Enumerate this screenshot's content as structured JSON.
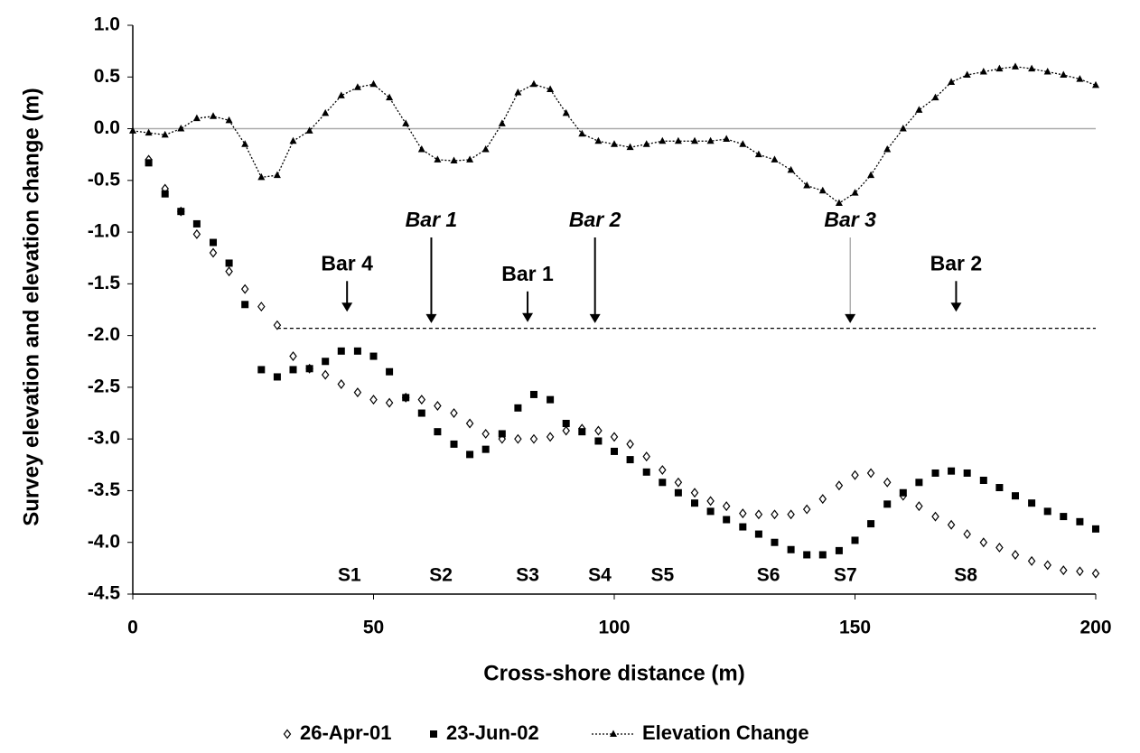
{
  "chart_data": {
    "type": "scatter",
    "x_label": "Cross-shore distance (m)",
    "y_label": "Survey elevation and elevation change (m)",
    "xlim": [
      0,
      200
    ],
    "xticks": [
      0,
      50,
      100,
      150,
      200
    ],
    "ylim": [
      -4.5,
      1
    ],
    "yticks": [
      {
        "value": 1,
        "label": "1.0"
      },
      0.5,
      {
        "value": 0,
        "label": "0.0"
      },
      -0.5,
      {
        "value": -1,
        "label": "-1.0"
      },
      -1.5,
      {
        "value": -2,
        "label": "-2.0"
      },
      -2.5,
      {
        "value": -3,
        "label": "-3.0"
      },
      -3.5,
      {
        "value": -4,
        "label": "-4.0"
      },
      -4.5
    ],
    "zero_line": true,
    "x": [
      0,
      3.3,
      6.7,
      10,
      13.3,
      16.7,
      20,
      23.3,
      26.7,
      30,
      33.3,
      36.7,
      40,
      43.3,
      46.7,
      50,
      53.3,
      56.7,
      60,
      63.3,
      66.7,
      70,
      73.3,
      76.7,
      80,
      83.3,
      86.7,
      90,
      93.3,
      96.7,
      100,
      103.3,
      106.7,
      110,
      113.3,
      116.7,
      120,
      123.3,
      126.7,
      130,
      133.3,
      136.7,
      140,
      143.3,
      146.7,
      150,
      153.3,
      156.7,
      160,
      163.3,
      166.7,
      170,
      173.3,
      176.7,
      180,
      183.3,
      186.7,
      190,
      193.3,
      196.7,
      200
    ],
    "series": [
      {
        "name": "26-Apr-01",
        "marker": "diamond",
        "color": "#000000",
        "values": [
          null,
          -0.3,
          -0.58,
          -0.8,
          -1.02,
          -1.2,
          -1.38,
          -1.55,
          -1.72,
          -1.9,
          -2.2,
          -2.32,
          -2.38,
          -2.47,
          -2.55,
          -2.62,
          -2.65,
          -2.6,
          -2.62,
          -2.68,
          -2.75,
          -2.85,
          -2.95,
          -3.0,
          -3.0,
          -3.0,
          -2.98,
          -2.92,
          -2.9,
          -2.92,
          -2.98,
          -3.05,
          -3.17,
          -3.3,
          -3.42,
          -3.52,
          -3.6,
          -3.65,
          -3.72,
          -3.73,
          -3.73,
          -3.73,
          -3.68,
          -3.58,
          -3.45,
          -3.35,
          -3.33,
          -3.42,
          -3.55,
          -3.65,
          -3.75,
          -3.83,
          -3.92,
          -4.0,
          -4.05,
          -4.12,
          -4.18,
          -4.22,
          -4.27,
          -4.28,
          -4.3
        ]
      },
      {
        "name": "23-Jun-02",
        "marker": "square",
        "color": "#000000",
        "values": [
          null,
          -0.33,
          -0.63,
          -0.8,
          -0.92,
          -1.1,
          -1.3,
          -1.7,
          -2.33,
          -2.4,
          -2.33,
          -2.32,
          -2.25,
          -2.15,
          -2.15,
          -2.2,
          -2.35,
          -2.6,
          -2.75,
          -2.93,
          -3.05,
          -3.15,
          -3.1,
          -2.95,
          -2.7,
          -2.57,
          -2.62,
          -2.85,
          -2.93,
          -3.02,
          -3.12,
          -3.2,
          -3.32,
          -3.42,
          -3.52,
          -3.62,
          -3.7,
          -3.78,
          -3.85,
          -3.92,
          -4.0,
          -4.07,
          -4.12,
          -4.12,
          -4.08,
          -3.98,
          -3.82,
          -3.63,
          -3.52,
          -3.42,
          -3.33,
          -3.31,
          -3.33,
          -3.4,
          -3.47,
          -3.55,
          -3.62,
          -3.7,
          -3.75,
          -3.8,
          -3.87
        ]
      },
      {
        "name": "Elevation Change",
        "marker": "triangle",
        "line": "dotted",
        "color": "#000000",
        "values": [
          -0.02,
          -0.04,
          -0.06,
          0.0,
          0.1,
          0.12,
          0.08,
          -0.15,
          -0.47,
          -0.45,
          -0.12,
          -0.02,
          0.15,
          0.32,
          0.4,
          0.43,
          0.3,
          0.05,
          -0.2,
          -0.3,
          -0.31,
          -0.3,
          -0.2,
          0.05,
          0.35,
          0.43,
          0.38,
          0.15,
          -0.05,
          -0.12,
          -0.15,
          -0.18,
          -0.15,
          -0.12,
          -0.12,
          -0.12,
          -0.12,
          -0.1,
          -0.15,
          -0.25,
          -0.3,
          -0.4,
          -0.55,
          -0.6,
          -0.72,
          -0.62,
          -0.45,
          -0.2,
          0.0,
          0.18,
          0.3,
          0.45,
          0.52,
          0.55,
          0.58,
          0.6,
          0.58,
          0.55,
          0.52,
          0.48,
          0.42
        ]
      }
    ],
    "reference_line": {
      "y": -1.93,
      "x": [
        30,
        200
      ]
    },
    "annotations": [
      {
        "text": "Bar 4",
        "x": 44.5,
        "y": -1.77,
        "color": "#777777",
        "emphasis": false
      },
      {
        "text": "Bar 1",
        "x": 62,
        "y": -1.88,
        "color": "#000000",
        "emphasis": true
      },
      {
        "text": "Bar 1",
        "x": 82,
        "y": -1.87,
        "color": "#777777",
        "emphasis": false
      },
      {
        "text": "Bar 2",
        "x": 96,
        "y": -1.88,
        "color": "#000000",
        "emphasis": true
      },
      {
        "text": "Bar 3",
        "x": 149,
        "y": -1.88,
        "color": "#000000",
        "emphasis": true
      },
      {
        "text": "Bar 2",
        "x": 171,
        "y": -1.77,
        "color": "#777777",
        "emphasis": false
      }
    ],
    "sections": [
      {
        "label": "S1",
        "x": 45
      },
      {
        "label": "S2",
        "x": 64
      },
      {
        "label": "S3",
        "x": 82
      },
      {
        "label": "S4",
        "x": 97
      },
      {
        "label": "S5",
        "x": 110
      },
      {
        "label": "S6",
        "x": 132
      },
      {
        "label": "S7",
        "x": 148
      },
      {
        "label": "S8",
        "x": 173
      }
    ]
  }
}
